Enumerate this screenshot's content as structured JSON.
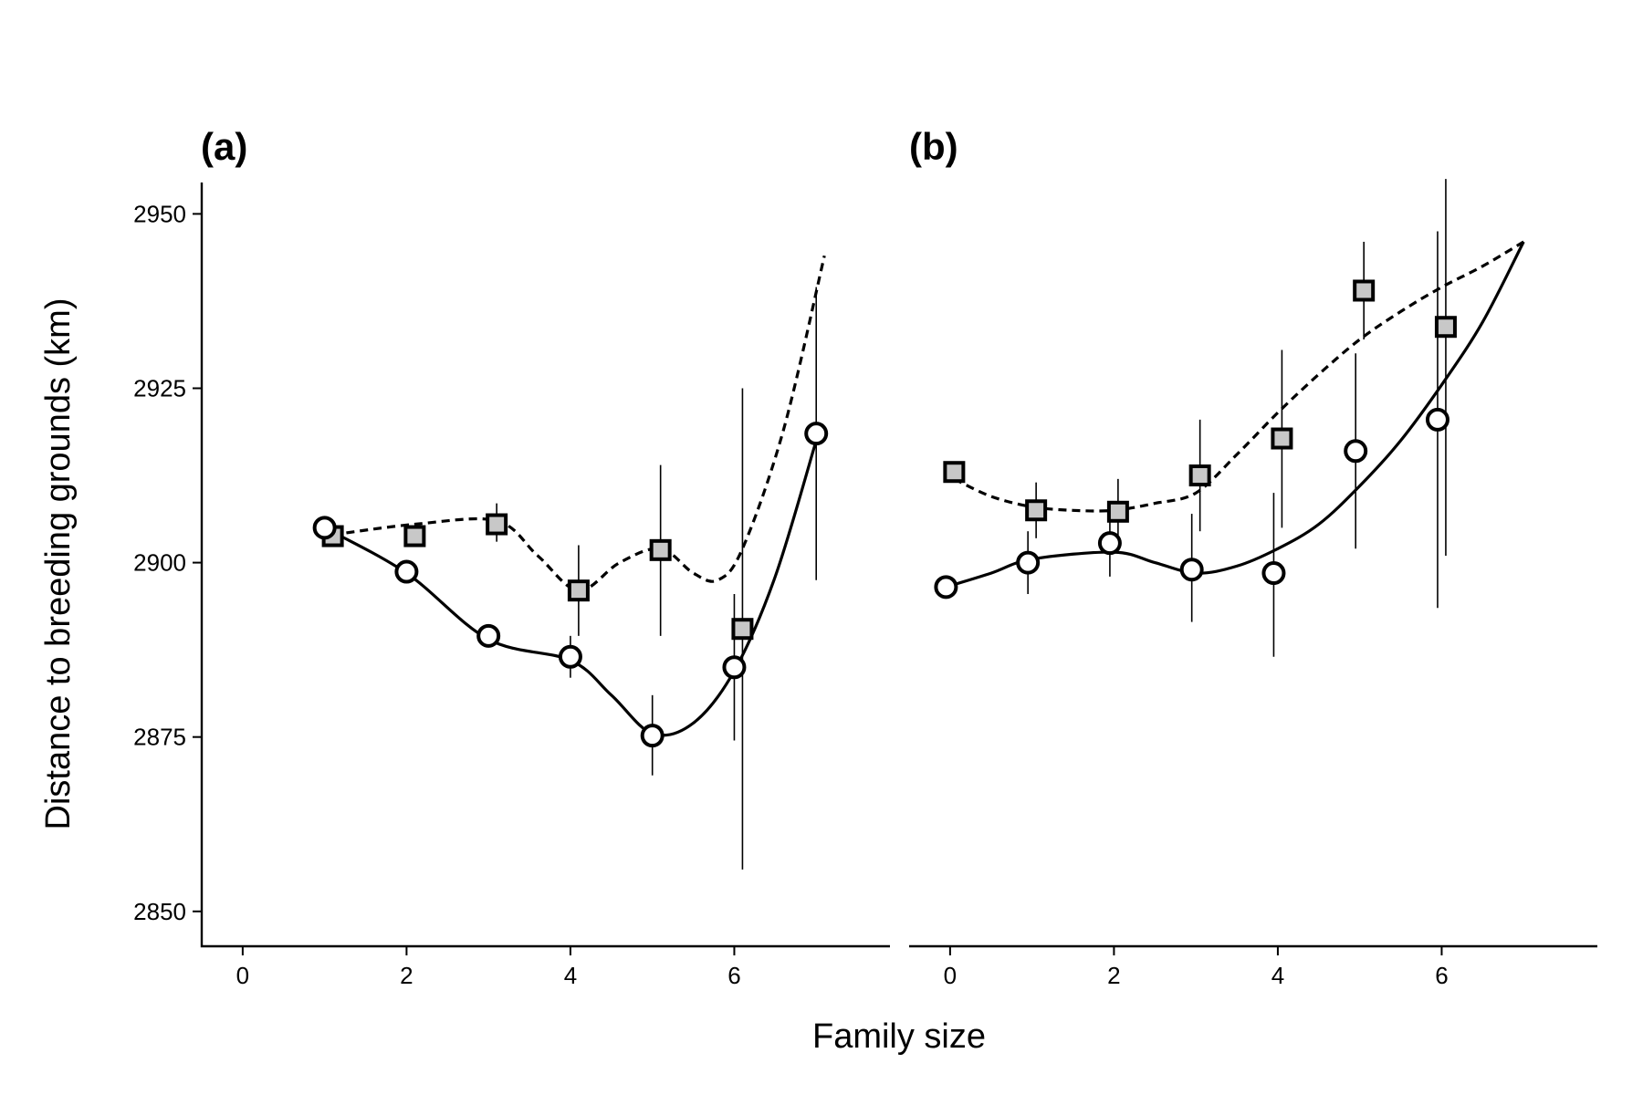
{
  "figure": {
    "xlabel": "Family size",
    "ylabel": "Distance to breeding grounds (km)"
  },
  "chart_data": [
    {
      "type": "line",
      "panel_label": "(a)",
      "xlabel": "Family size",
      "ylabel": "Distance to breeding grounds (km)",
      "xlim": [
        -0.5,
        7.9
      ],
      "ylim": [
        2845,
        2954.5
      ],
      "xticks": [
        0,
        2,
        4,
        6
      ],
      "yticks": [
        2850,
        2875,
        2900,
        2925,
        2950
      ],
      "grid": false,
      "legend": "none",
      "series": [
        {
          "marker": "circle",
          "line": "solid",
          "points": [
            {
              "x": 1,
              "y": 2905,
              "lo": null,
              "hi": null
            },
            {
              "x": 2,
              "y": 2898.7,
              "lo": null,
              "hi": null
            },
            {
              "x": 3,
              "y": 2889.5,
              "lo": null,
              "hi": null
            },
            {
              "x": 4,
              "y": 2886.5,
              "lo": 2883.5,
              "hi": 2889.5
            },
            {
              "x": 5,
              "y": 2875.2,
              "lo": 2869.5,
              "hi": 2881
            },
            {
              "x": 6,
              "y": 2885,
              "lo": 2874.5,
              "hi": 2895.5
            },
            {
              "x": 7,
              "y": 2918.5,
              "lo": 2897.5,
              "hi": 2939.5
            }
          ],
          "fit": [
            [
              1,
              2905
            ],
            [
              2,
              2898.5
            ],
            [
              3,
              2889
            ],
            [
              4,
              2886
            ],
            [
              4.5,
              2881
            ],
            [
              5,
              2875.5
            ],
            [
              5.5,
              2877
            ],
            [
              6,
              2884.5
            ],
            [
              6.5,
              2898
            ],
            [
              7,
              2917.5
            ]
          ]
        },
        {
          "marker": "square",
          "line": "dashed",
          "points": [
            {
              "x": 1.1,
              "y": 2903.8,
              "lo": null,
              "hi": null
            },
            {
              "x": 2.1,
              "y": 2903.8,
              "lo": null,
              "hi": null
            },
            {
              "x": 3.1,
              "y": 2905.5,
              "lo": 2903,
              "hi": 2908.5
            },
            {
              "x": 4.1,
              "y": 2896,
              "lo": 2889.5,
              "hi": 2902.5
            },
            {
              "x": 5.1,
              "y": 2901.8,
              "lo": 2889.5,
              "hi": 2914
            },
            {
              "x": 6.1,
              "y": 2890.5,
              "lo": 2856,
              "hi": 2925
            }
          ],
          "fit": [
            [
              1.1,
              2904
            ],
            [
              2.1,
              2905.5
            ],
            [
              3.1,
              2906
            ],
            [
              3.6,
              2901
            ],
            [
              4.1,
              2896
            ],
            [
              4.6,
              2900
            ],
            [
              5.1,
              2902
            ],
            [
              5.5,
              2898.5
            ],
            [
              5.8,
              2897.5
            ],
            [
              6.1,
              2902
            ],
            [
              6.6,
              2919
            ],
            [
              7.1,
              2944
            ]
          ]
        }
      ]
    },
    {
      "type": "line",
      "panel_label": "(b)",
      "xlabel": "Family size",
      "ylabel": "",
      "xlim": [
        -0.5,
        7.9
      ],
      "ylim": [
        2845,
        2954.5
      ],
      "xticks": [
        0,
        2,
        4,
        6
      ],
      "yticks": [],
      "grid": false,
      "legend": "none",
      "series": [
        {
          "marker": "circle",
          "line": "solid",
          "points": [
            {
              "x": -0.05,
              "y": 2896.5,
              "lo": null,
              "hi": null
            },
            {
              "x": 0.95,
              "y": 2900,
              "lo": 2895.5,
              "hi": 2904.5
            },
            {
              "x": 1.95,
              "y": 2902.8,
              "lo": 2898,
              "hi": 2907.5
            },
            {
              "x": 2.95,
              "y": 2899,
              "lo": 2891.5,
              "hi": 2907
            },
            {
              "x": 3.95,
              "y": 2898.5,
              "lo": 2886.5,
              "hi": 2910
            },
            {
              "x": 4.95,
              "y": 2916,
              "lo": 2902,
              "hi": 2930
            },
            {
              "x": 5.95,
              "y": 2920.5,
              "lo": 2893.5,
              "hi": 2947.5
            }
          ],
          "fit": [
            [
              -0.05,
              2896.5
            ],
            [
              0.5,
              2898.5
            ],
            [
              1,
              2900.5
            ],
            [
              2,
              2901.5
            ],
            [
              2.5,
              2900
            ],
            [
              3,
              2898.5
            ],
            [
              3.5,
              2899.5
            ],
            [
              4,
              2902
            ],
            [
              4.5,
              2905.5
            ],
            [
              5,
              2911
            ],
            [
              5.5,
              2917.5
            ],
            [
              6,
              2925.5
            ],
            [
              6.5,
              2934.5
            ],
            [
              7,
              2946
            ]
          ]
        },
        {
          "marker": "square",
          "line": "dashed",
          "points": [
            {
              "x": 0.05,
              "y": 2913,
              "lo": null,
              "hi": null
            },
            {
              "x": 1.05,
              "y": 2907.5,
              "lo": 2903.5,
              "hi": 2911.5
            },
            {
              "x": 2.05,
              "y": 2907.3,
              "lo": 2902.5,
              "hi": 2912
            },
            {
              "x": 3.05,
              "y": 2912.5,
              "lo": 2904.5,
              "hi": 2920.5
            },
            {
              "x": 4.05,
              "y": 2917.8,
              "lo": 2905,
              "hi": 2930.5
            },
            {
              "x": 5.05,
              "y": 2939,
              "lo": 2932,
              "hi": 2946
            },
            {
              "x": 6.05,
              "y": 2933.8,
              "lo": 2901,
              "hi": 2955
            }
          ],
          "fit": [
            [
              0.05,
              2912
            ],
            [
              0.5,
              2909.5
            ],
            [
              1,
              2908
            ],
            [
              1.5,
              2907.5
            ],
            [
              2,
              2907.5
            ],
            [
              2.5,
              2908.5
            ],
            [
              3,
              2910
            ],
            [
              3.5,
              2915.5
            ],
            [
              4,
              2921.5
            ],
            [
              4.5,
              2927
            ],
            [
              5,
              2932
            ],
            [
              5.5,
              2936
            ],
            [
              6,
              2939.5
            ],
            [
              6.5,
              2942.5
            ],
            [
              7,
              2946
            ]
          ]
        }
      ]
    }
  ]
}
